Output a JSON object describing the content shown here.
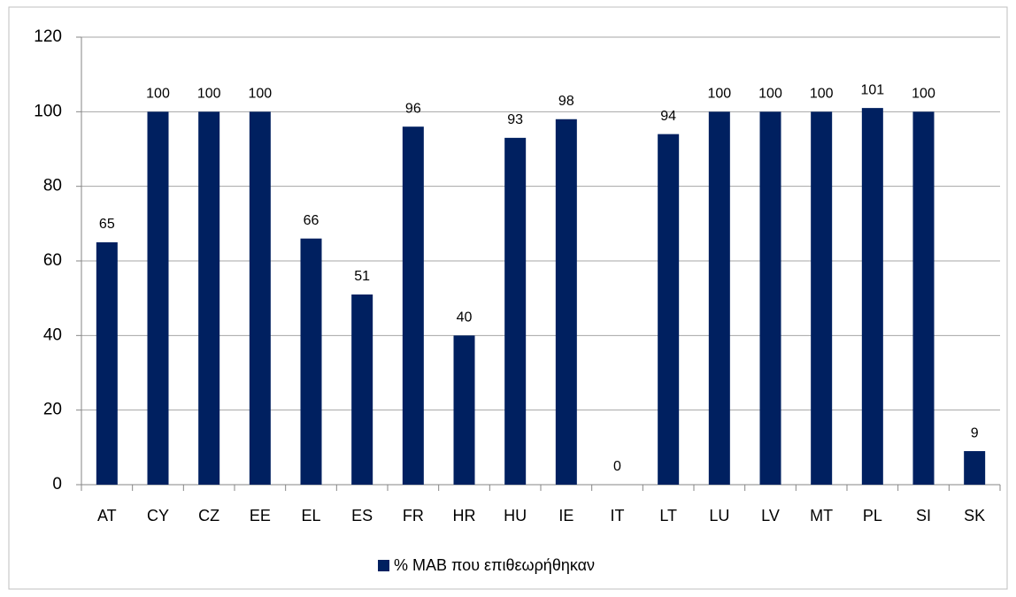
{
  "chart_data": {
    "type": "bar",
    "categories": [
      "AT",
      "CY",
      "CZ",
      "EE",
      "EL",
      "ES",
      "FR",
      "HR",
      "HU",
      "IE",
      "IT",
      "LT",
      "LU",
      "LV",
      "MT",
      "PL",
      "SI",
      "SK"
    ],
    "series": [
      {
        "name": "% MAB που επιθεωρήθηκαν",
        "color": "#002060",
        "values": [
          65,
          100,
          100,
          100,
          66,
          51,
          96,
          40,
          93,
          98,
          0,
          94,
          100,
          100,
          100,
          101,
          100,
          9
        ]
      }
    ],
    "ylim": [
      0,
      120
    ],
    "yticks": [
      0,
      20,
      40,
      60,
      80,
      100,
      120
    ],
    "grid": true,
    "legend": "bottom"
  }
}
